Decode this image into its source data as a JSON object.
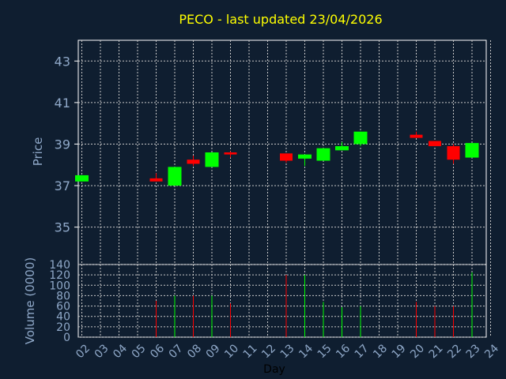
{
  "title": "PECO - last updated 23/04/2026",
  "colors": {
    "background": "#0f1e30",
    "frame": "#ffffff",
    "grid": "#c8c8c8",
    "title": "#ffff00",
    "axis_text": "#8fa8c8",
    "up": "#00ff00",
    "down": "#ff0000"
  },
  "chart_data": [
    {
      "type": "candlestick",
      "ylabel": "Price",
      "ylim": [
        33.2,
        44
      ],
      "yticks": [
        35,
        37,
        39,
        41,
        43
      ],
      "grid": true,
      "candles": [
        {
          "day": "02",
          "open": 37.2,
          "close": 37.5,
          "high": 37.5,
          "low": 37.2
        },
        {
          "day": "06",
          "open": 37.35,
          "close": 37.2,
          "high": 37.6,
          "low": 37.2
        },
        {
          "day": "07",
          "open": 37.0,
          "close": 37.9,
          "high": 37.9,
          "low": 37.0
        },
        {
          "day": "08",
          "open": 38.25,
          "close": 38.05,
          "high": 38.45,
          "low": 37.95
        },
        {
          "day": "09",
          "open": 37.9,
          "close": 38.6,
          "high": 38.6,
          "low": 37.9
        },
        {
          "day": "10",
          "open": 38.6,
          "close": 38.5,
          "high": 38.65,
          "low": 38.35
        },
        {
          "day": "13",
          "open": 38.55,
          "close": 38.2,
          "high": 38.55,
          "low": 38.1
        },
        {
          "day": "14",
          "open": 38.3,
          "close": 38.5,
          "high": 38.5,
          "low": 37.95
        },
        {
          "day": "15",
          "open": 38.2,
          "close": 38.8,
          "high": 38.8,
          "low": 38.2
        },
        {
          "day": "16",
          "open": 38.7,
          "close": 38.9,
          "high": 39.1,
          "low": 38.7
        },
        {
          "day": "17",
          "open": 39.0,
          "close": 39.6,
          "high": 39.6,
          "low": 38.9
        },
        {
          "day": "20",
          "open": 39.45,
          "close": 39.3,
          "high": 39.6,
          "low": 39.3
        },
        {
          "day": "21",
          "open": 39.15,
          "close": 38.9,
          "high": 39.15,
          "low": 38.9
        },
        {
          "day": "22",
          "open": 38.9,
          "close": 38.25,
          "high": 39.0,
          "low": 38.05
        },
        {
          "day": "23",
          "open": 38.35,
          "close": 39.05,
          "high": 39.05,
          "low": 38.35
        }
      ]
    },
    {
      "type": "bar",
      "xlabel": "Day",
      "ylabel": "Volume (0000)",
      "ylim": [
        0,
        140
      ],
      "yticks": [
        0,
        20,
        40,
        60,
        80,
        100,
        120,
        140
      ],
      "grid": true,
      "categories": [
        "02",
        "03",
        "04",
        "05",
        "06",
        "07",
        "08",
        "09",
        "10",
        "11",
        "12",
        "13",
        "14",
        "15",
        "16",
        "17",
        "18",
        "19",
        "20",
        "21",
        "22",
        "23",
        "24"
      ],
      "bars": [
        {
          "day": "06",
          "value": 70,
          "dir": "down"
        },
        {
          "day": "07",
          "value": 80,
          "dir": "up"
        },
        {
          "day": "08",
          "value": 80,
          "dir": "down"
        },
        {
          "day": "09",
          "value": 80,
          "dir": "up"
        },
        {
          "day": "10",
          "value": 65,
          "dir": "down"
        },
        {
          "day": "13",
          "value": 120,
          "dir": "down"
        },
        {
          "day": "14",
          "value": 120,
          "dir": "up"
        },
        {
          "day": "15",
          "value": 68,
          "dir": "up"
        },
        {
          "day": "16",
          "value": 58,
          "dir": "up"
        },
        {
          "day": "17",
          "value": 60,
          "dir": "up"
        },
        {
          "day": "20",
          "value": 68,
          "dir": "down"
        },
        {
          "day": "21",
          "value": 60,
          "dir": "down"
        },
        {
          "day": "22",
          "value": 60,
          "dir": "down"
        },
        {
          "day": "23",
          "value": 125,
          "dir": "up"
        }
      ]
    }
  ]
}
